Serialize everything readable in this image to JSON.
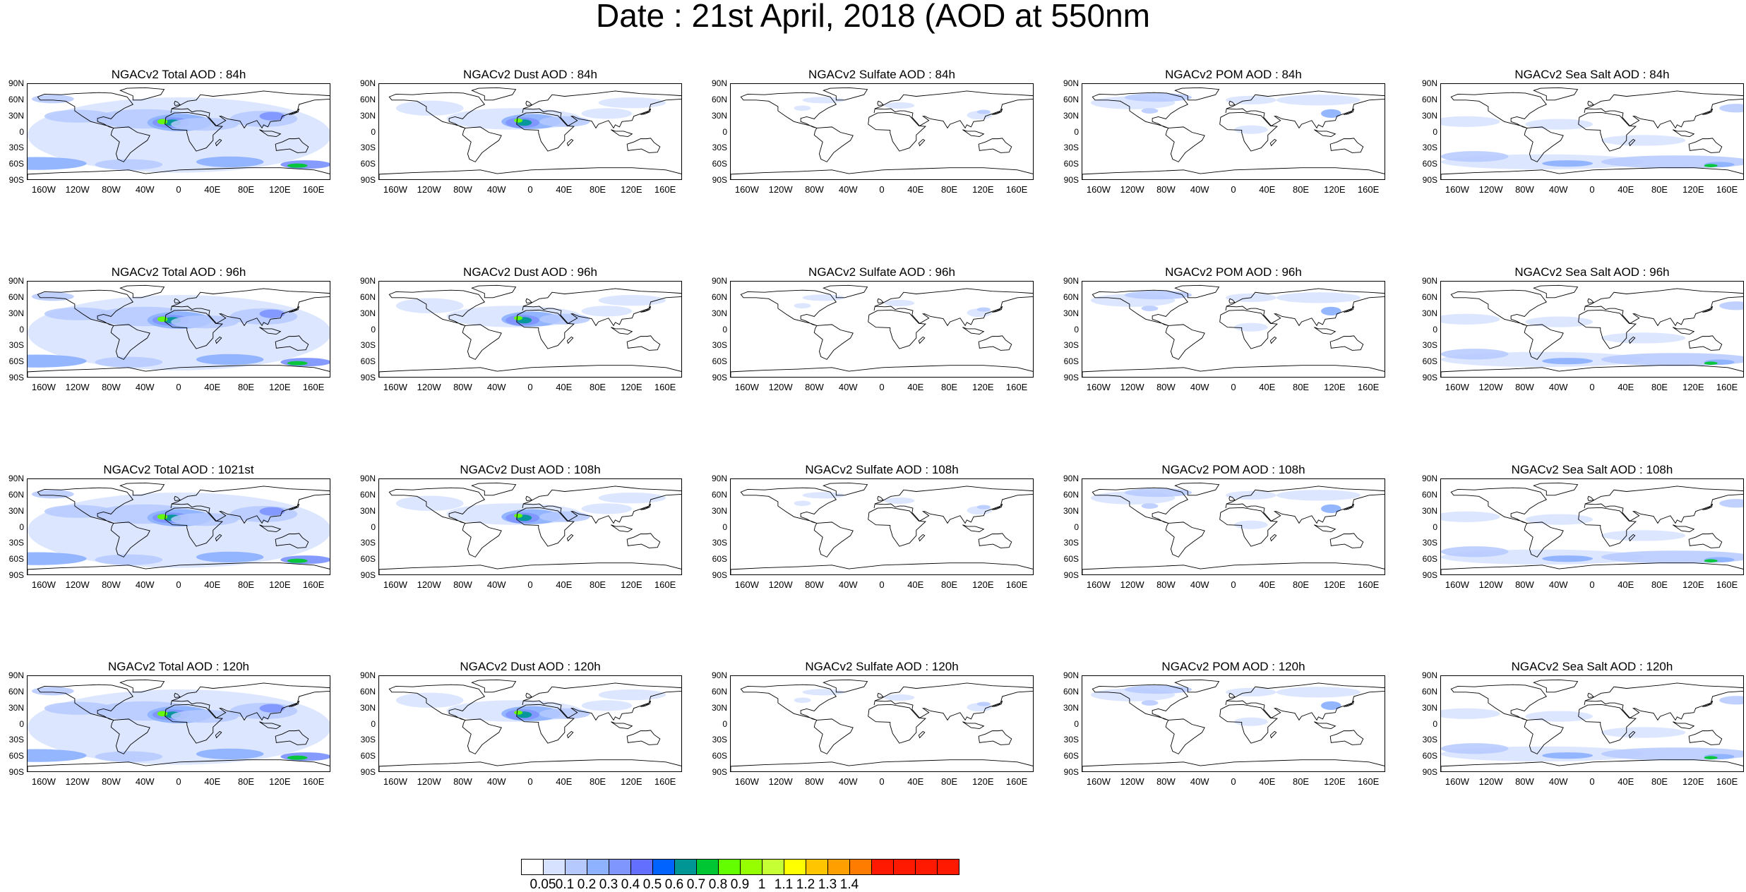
{
  "title": "Date : 21st April, 2018 (AOD at 550nm",
  "rows": [
    [
      "NGACv2 Total AOD : 84h",
      "NGACv2 Dust AOD : 84h",
      "NGACv2 Sulfate AOD : 84h",
      "NGACv2 POM AOD : 84h",
      "NGACv2 Sea Salt AOD : 84h"
    ],
    [
      "NGACv2 Total AOD : 96h",
      "NGACv2 Dust AOD : 96h",
      "NGACv2 Sulfate AOD : 96h",
      "NGACv2 POM AOD : 96h",
      "NGACv2 Sea Salt AOD : 96h"
    ],
    [
      "NGACv2 Total AOD : 1021st",
      "NGACv2 Dust AOD : 108h",
      "NGACv2 Sulfate AOD : 108h",
      "NGACv2 POM AOD : 108h",
      "NGACv2 Sea Salt AOD : 108h"
    ],
    [
      "NGACv2 Total AOD : 120h",
      "NGACv2 Dust AOD : 120h",
      "NGACv2 Sulfate AOD : 120h",
      "NGACv2 POM AOD : 120h",
      "NGACv2 Sea Salt  AOD : 120h"
    ]
  ],
  "lat_ticks": [
    "90N",
    "60N",
    "30N",
    "0",
    "30S",
    "60S",
    "90S"
  ],
  "lon_ticks": [
    "160W",
    "120W",
    "80W",
    "40W",
    "0",
    "40E",
    "80E",
    "120E",
    "160E"
  ],
  "colorbar": {
    "labels": [
      "0.05",
      "0.1",
      "0.2",
      "0.3",
      "0.4",
      "0.5",
      "0.6",
      "0.7",
      "0.8",
      "0.9",
      "1",
      "1.1",
      "1.2",
      "1.3",
      "1.4"
    ],
    "colors": [
      "#ffffff",
      "#d6e2ff",
      "#b5c9ff",
      "#8eb2ff",
      "#7f96ff",
      "#6370ff",
      "#0063ff",
      "#009696",
      "#00c633",
      "#63ff00",
      "#96ff00",
      "#c6ff33",
      "#ffff00",
      "#ffc600",
      "#ffa000",
      "#ff7c00",
      "#ff1900"
    ]
  },
  "panel_styles": [
    "total",
    "dust",
    "sulfate",
    "pom",
    "seasalt"
  ]
}
